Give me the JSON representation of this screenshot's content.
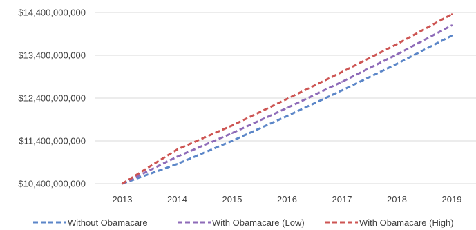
{
  "chart_data": {
    "type": "line",
    "x": [
      "2013",
      "2014",
      "2015",
      "2016",
      "2017",
      "2018",
      "2019"
    ],
    "y_ticks": [
      10400000000,
      11400000000,
      12400000000,
      13400000000,
      14400000000
    ],
    "y_tick_labels": [
      "$10,400,000,000",
      "$11,400,000,000",
      "$12,400,000,000",
      "$13,400,000,000",
      "$14,400,000,000"
    ],
    "ylim": [
      10400000000,
      14400000000
    ],
    "grid": true,
    "legend_position": "bottom",
    "series": [
      {
        "name": "Without Obamacare",
        "color": "#5b86c8",
        "values": [
          10400000000,
          10860000000,
          11400000000,
          11980000000,
          12580000000,
          13200000000,
          13860000000
        ]
      },
      {
        "name": "With Obamacare (Low)",
        "color": "#8e6bb8",
        "values": [
          10400000000,
          11030000000,
          11580000000,
          12170000000,
          12780000000,
          13420000000,
          14100000000
        ]
      },
      {
        "name": "With Obamacare (High)",
        "color": "#cd5553",
        "values": [
          10400000000,
          11200000000,
          11760000000,
          12380000000,
          13010000000,
          13660000000,
          14360000000
        ]
      }
    ]
  }
}
